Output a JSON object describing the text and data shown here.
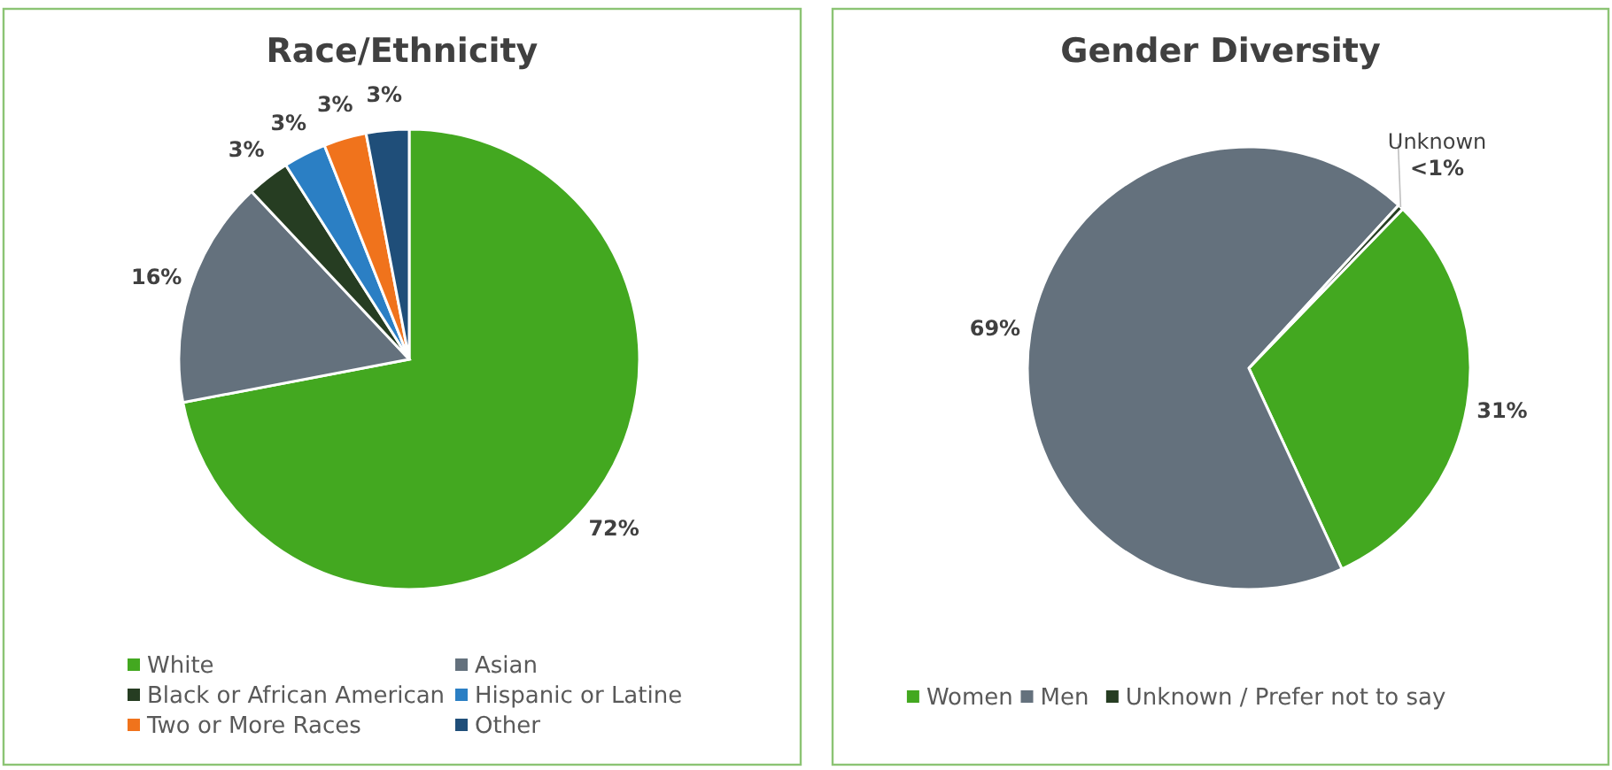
{
  "chart_data": [
    {
      "type": "pie",
      "title": "Race/Ethnicity",
      "categories": [
        "White",
        "Asian",
        "Black or African American",
        "Hispanic or Latine",
        "Two or More Races",
        "Other"
      ],
      "values": [
        72,
        16,
        3,
        3,
        3,
        3
      ],
      "colors": [
        "#43a820",
        "#64717d",
        "#263d22",
        "#2b7fc4",
        "#f0731c",
        "#1f4e79"
      ],
      "value_labels": [
        "72%",
        "16%",
        "3%",
        "3%",
        "3%",
        "3%"
      ],
      "legend": "bottom"
    },
    {
      "type": "pie",
      "title": "Gender Diversity",
      "categories": [
        "Women",
        "Men",
        "Unknown / Prefer not to say"
      ],
      "values": [
        31,
        69,
        0.4
      ],
      "value_labels": [
        "31%",
        "69%",
        "<1%"
      ],
      "colors": [
        "#43a820",
        "#64717d",
        "#263d22"
      ],
      "annotations": [
        {
          "text": "Unknown",
          "x": "Unknown / Prefer not to say"
        }
      ],
      "legend": "bottom"
    }
  ]
}
